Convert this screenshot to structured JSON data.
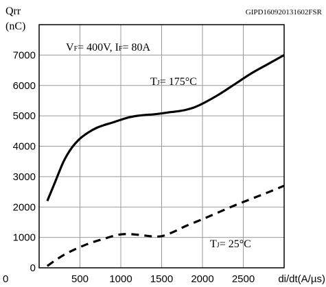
{
  "doc_code": "GIPD160920131602FSR",
  "chart_data": {
    "type": "line",
    "ylabel_line1": "Qrr",
    "ylabel_line2": "(nC)",
    "xlabel": "di/dt(A/µs)",
    "xlim": [
      0,
      3000
    ],
    "ylim": [
      0,
      8000
    ],
    "x_ticks": [
      0,
      500,
      1000,
      1500,
      2000,
      2500
    ],
    "x_tick_labels": [
      "0",
      "500",
      "1000",
      "1500",
      "2000",
      "2500"
    ],
    "y_ticks": [
      0,
      1000,
      2000,
      3000,
      4000,
      5000,
      6000,
      7000
    ],
    "y_tick_labels": [
      "0",
      "1000",
      "2000",
      "3000",
      "4000",
      "5000",
      "6000",
      "7000"
    ],
    "grid": true,
    "conditions": {
      "vf_label": "V",
      "vf_sub": "F",
      "vf_value": "= 400V,",
      "if_label": "I",
      "if_sub": "F",
      "if_value": "= 80A"
    },
    "series": [
      {
        "label_main": "T",
        "label_sub": "J",
        "label_value": "= 175°C",
        "dash": "solid",
        "x": [
          100,
          200,
          300,
          400,
          500,
          600,
          700,
          800,
          900,
          1000,
          1100,
          1200,
          1300,
          1400,
          1500,
          1600,
          1700,
          1800,
          1900,
          2000,
          2200,
          2400,
          2600,
          2800,
          3000
        ],
        "y": [
          2200,
          2850,
          3500,
          3950,
          4250,
          4450,
          4600,
          4700,
          4780,
          4870,
          4950,
          5000,
          5030,
          5050,
          5080,
          5120,
          5150,
          5200,
          5280,
          5400,
          5700,
          6050,
          6400,
          6700,
          7000
        ]
      },
      {
        "label_main": "T",
        "label_sub": "J",
        "label_value": "= 25°C",
        "dash": "dashed",
        "x": [
          100,
          200,
          300,
          400,
          500,
          600,
          700,
          800,
          900,
          1000,
          1100,
          1200,
          1300,
          1400,
          1500,
          1600,
          1700,
          1800,
          2000,
          2200,
          2400,
          2600,
          2800,
          3000
        ],
        "y": [
          60,
          250,
          420,
          560,
          680,
          790,
          880,
          960,
          1040,
          1100,
          1110,
          1090,
          1060,
          1030,
          1040,
          1130,
          1250,
          1380,
          1600,
          1830,
          2060,
          2270,
          2480,
          2700
        ]
      }
    ]
  }
}
